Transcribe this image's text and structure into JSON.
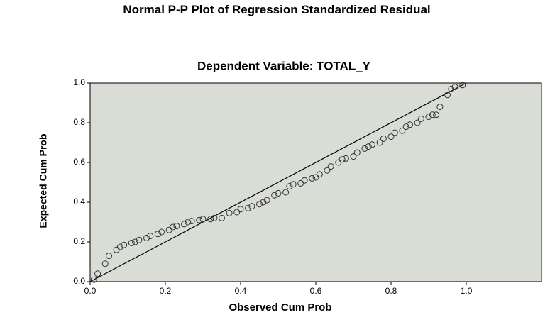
{
  "chart_data": {
    "type": "scatter",
    "title": "Normal P-P Plot of Regression Standardized Residual",
    "subtitle": "Dependent Variable: TOTAL_Y",
    "x_label": "Observed Cum Prob",
    "y_label": "Expected Cum Prob",
    "xlim": [
      0,
      1.2
    ],
    "ylim": [
      0,
      1
    ],
    "xticks": [
      {
        "value": 0,
        "label": "0.0"
      },
      {
        "value": 0.2,
        "label": "0.2"
      },
      {
        "value": 0.4,
        "label": "0.4"
      },
      {
        "value": 0.6,
        "label": "0.6"
      },
      {
        "value": 0.8,
        "label": "0.8"
      },
      {
        "value": 1,
        "label": "1.0"
      }
    ],
    "yticks": [
      {
        "value": 0,
        "label": "0.0"
      },
      {
        "value": 0.2,
        "label": "0.2"
      },
      {
        "value": 0.4,
        "label": "0.4"
      },
      {
        "value": 0.6,
        "label": "0.6"
      },
      {
        "value": 0.8,
        "label": "0.8"
      },
      {
        "value": 1,
        "label": "1.0"
      }
    ],
    "color": "#333333",
    "x": [
      0.01,
      0.02,
      0.04,
      0.05,
      0.07,
      0.08,
      0.09,
      0.11,
      0.12,
      0.13,
      0.15,
      0.16,
      0.18,
      0.19,
      0.21,
      0.22,
      0.23,
      0.25,
      0.26,
      0.27,
      0.29,
      0.3,
      0.32,
      0.33,
      0.35,
      0.37,
      0.39,
      0.4,
      0.42,
      0.43,
      0.45,
      0.46,
      0.47,
      0.49,
      0.5,
      0.52,
      0.53,
      0.54,
      0.56,
      0.57,
      0.59,
      0.6,
      0.61,
      0.63,
      0.64,
      0.66,
      0.67,
      0.68,
      0.7,
      0.71,
      0.73,
      0.74,
      0.75,
      0.77,
      0.78,
      0.8,
      0.81,
      0.83,
      0.84,
      0.85,
      0.87,
      0.88,
      0.9,
      0.91,
      0.92,
      0.93,
      0.95,
      0.96,
      0.97,
      0.99
    ],
    "values": [
      0.01,
      0.04,
      0.09,
      0.13,
      0.16,
      0.175,
      0.185,
      0.195,
      0.2,
      0.21,
      0.22,
      0.23,
      0.24,
      0.25,
      0.26,
      0.275,
      0.28,
      0.29,
      0.3,
      0.305,
      0.31,
      0.315,
      0.315,
      0.32,
      0.32,
      0.345,
      0.35,
      0.365,
      0.37,
      0.38,
      0.39,
      0.4,
      0.41,
      0.435,
      0.445,
      0.45,
      0.48,
      0.49,
      0.495,
      0.51,
      0.52,
      0.525,
      0.54,
      0.56,
      0.58,
      0.6,
      0.615,
      0.62,
      0.63,
      0.65,
      0.67,
      0.68,
      0.69,
      0.7,
      0.72,
      0.73,
      0.75,
      0.76,
      0.78,
      0.79,
      0.8,
      0.82,
      0.83,
      0.84,
      0.84,
      0.88,
      0.94,
      0.97,
      0.98,
      0.99
    ]
  }
}
